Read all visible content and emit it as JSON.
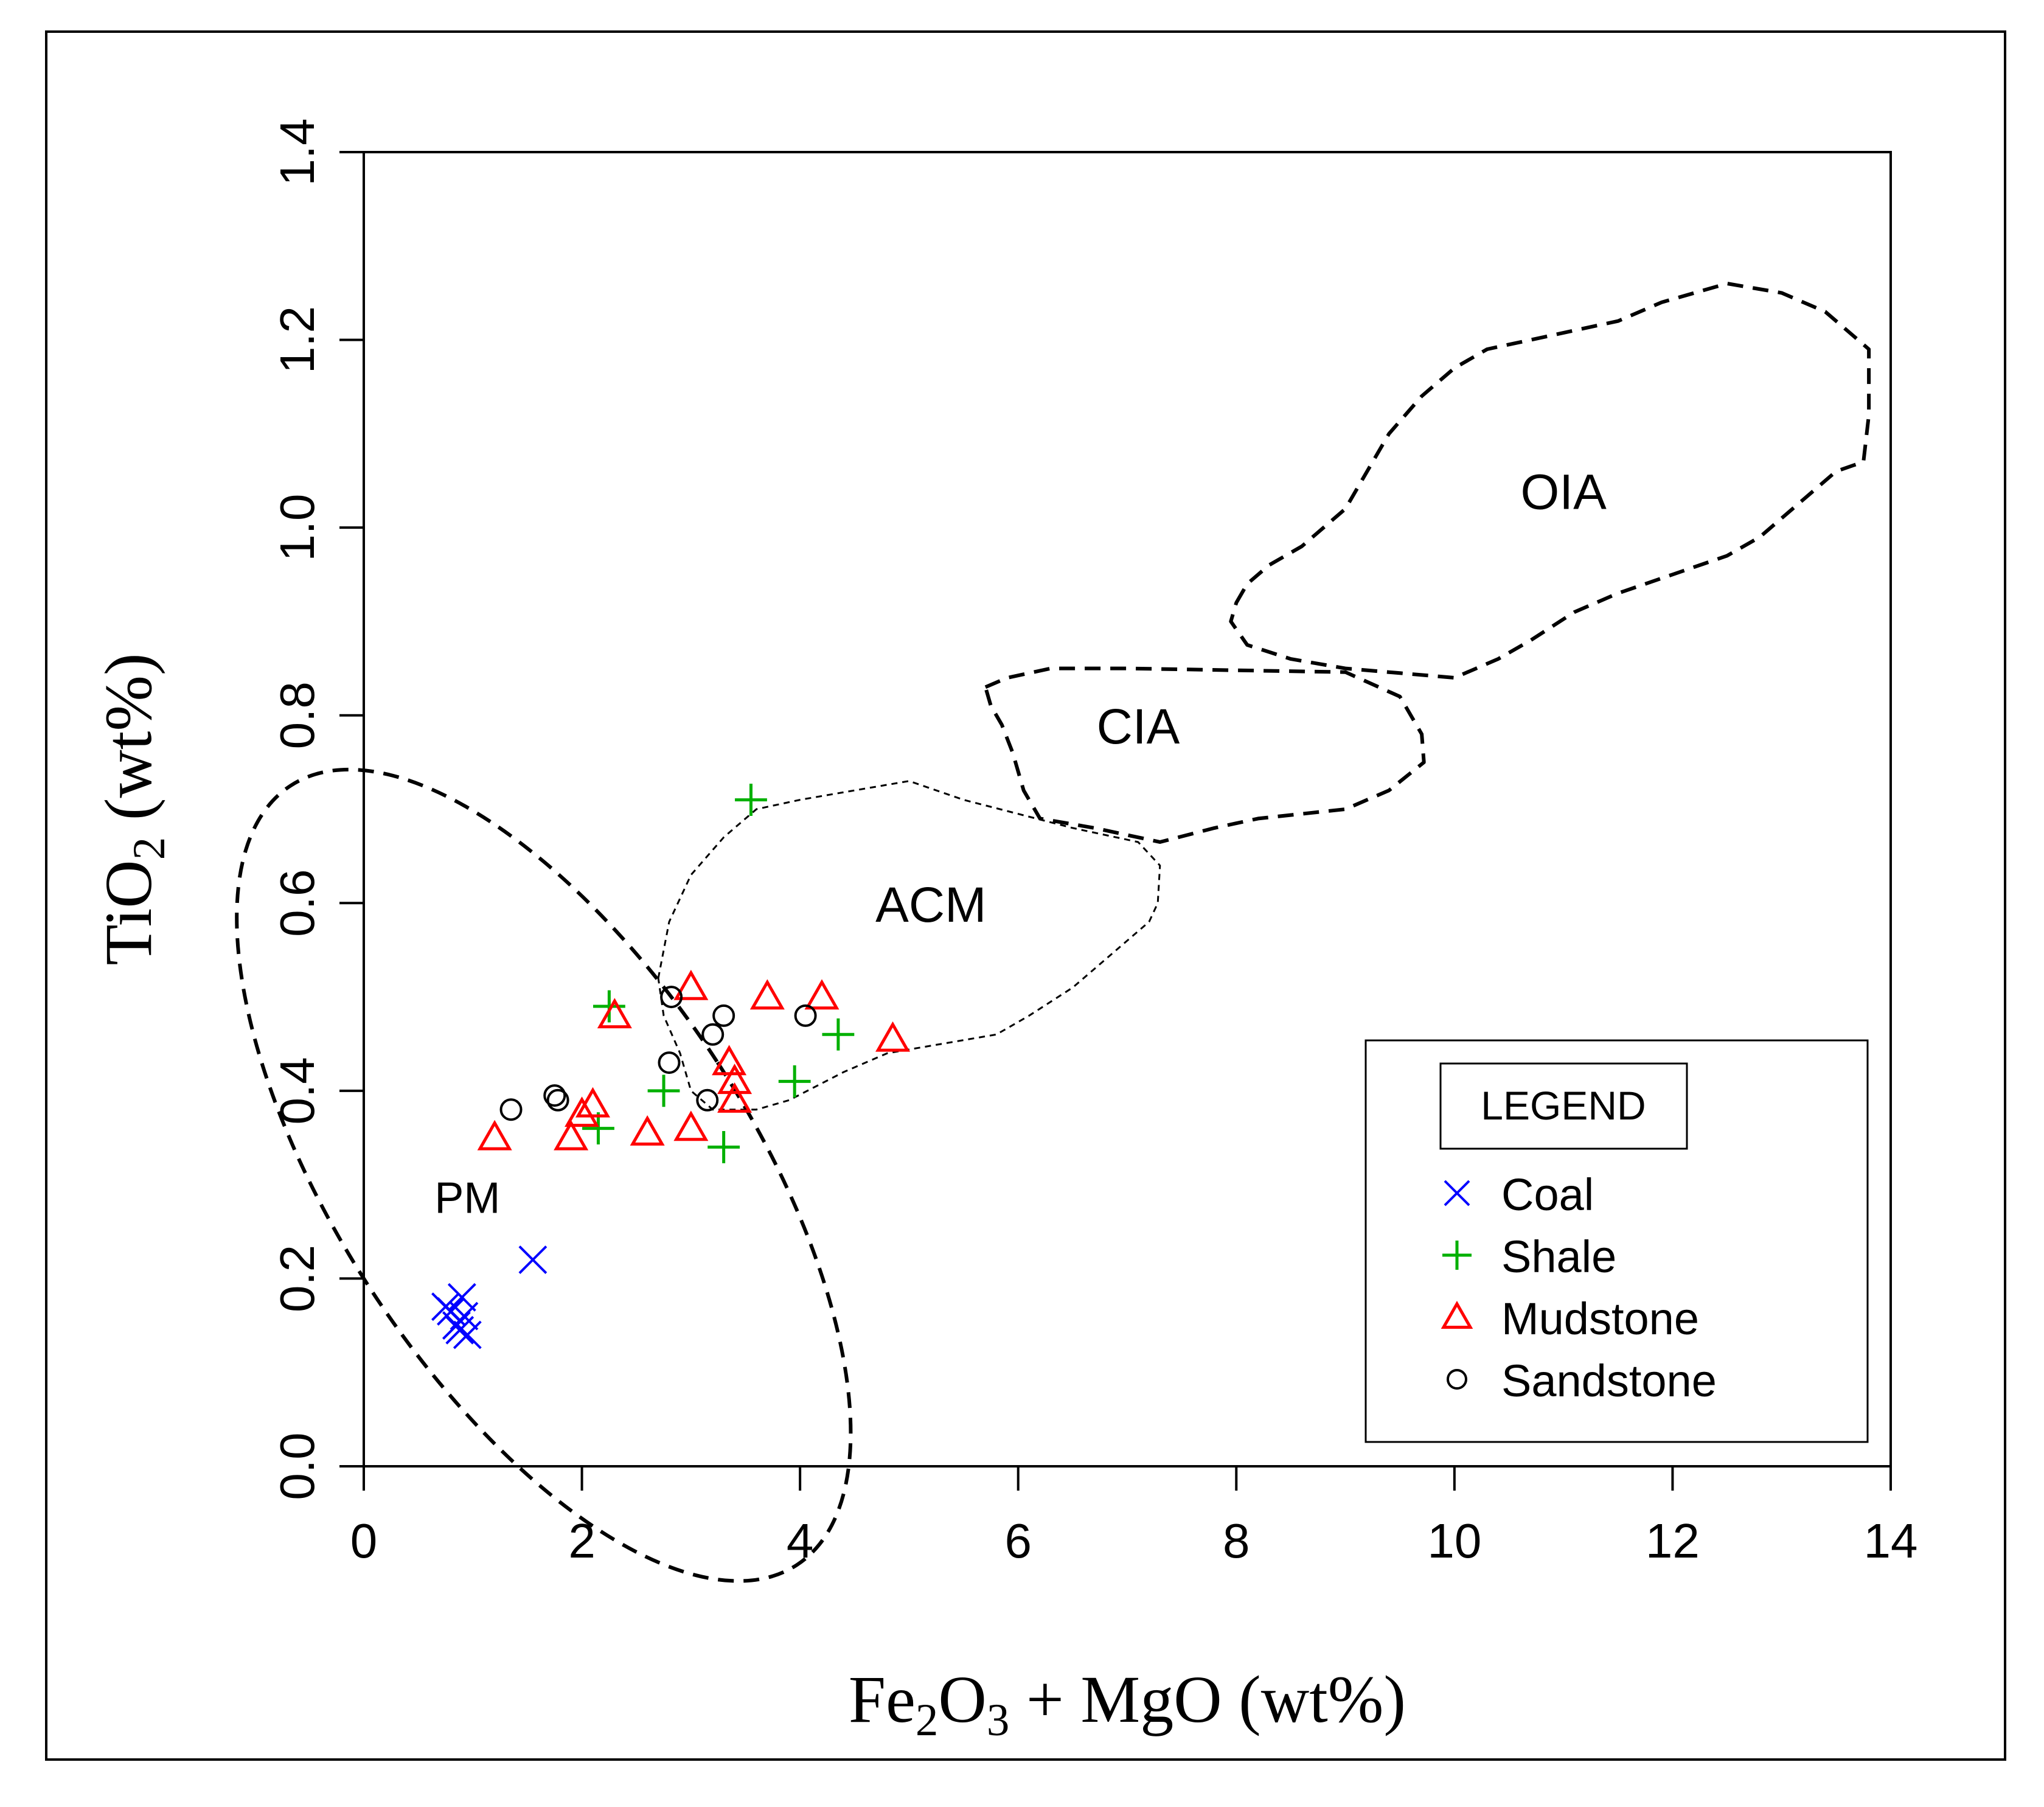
{
  "chart_data": {
    "type": "scatter",
    "title": "",
    "xlabel": {
      "pre": "Fe",
      "sub1": "2",
      "mid": "O",
      "sub2": "3",
      "post": " + MgO (wt%)"
    },
    "ylabel": {
      "pre": "TiO",
      "sub": "2",
      "post": " (wt%)"
    },
    "xlim": [
      0,
      14
    ],
    "ylim": [
      0,
      1.4
    ],
    "xticks": [
      0,
      2,
      4,
      6,
      8,
      10,
      12,
      14
    ],
    "yticks": [
      0.0,
      0.2,
      0.4,
      0.6,
      0.8,
      1.0,
      1.2,
      1.4
    ],
    "xtick_labels": [
      "0",
      "2",
      "4",
      "6",
      "8",
      "10",
      "12",
      "14"
    ],
    "ytick_labels": [
      "0.0",
      "0.2",
      "0.4",
      "0.6",
      "0.8",
      "1.0",
      "1.2",
      "1.4"
    ],
    "grid": false,
    "fields": [
      {
        "name": "OIA",
        "label_pos": [
          11.0,
          1.02
        ],
        "outline": [
          [
            8.0,
            0.92
          ],
          [
            8.1,
            0.94
          ],
          [
            8.3,
            0.96
          ],
          [
            8.6,
            0.98
          ],
          [
            9.0,
            1.02
          ],
          [
            9.2,
            1.06
          ],
          [
            9.4,
            1.1
          ],
          [
            9.7,
            1.14
          ],
          [
            10.0,
            1.17
          ],
          [
            10.3,
            1.19
          ],
          [
            10.7,
            1.2
          ],
          [
            11.1,
            1.21
          ],
          [
            11.5,
            1.22
          ],
          [
            11.9,
            1.24
          ],
          [
            12.5,
            1.26
          ],
          [
            13.0,
            1.25
          ],
          [
            13.4,
            1.23
          ],
          [
            13.6,
            1.21
          ],
          [
            13.8,
            1.19
          ],
          [
            13.8,
            1.12
          ],
          [
            13.75,
            1.07
          ],
          [
            13.5,
            1.06
          ],
          [
            13.2,
            1.03
          ],
          [
            12.8,
            0.99
          ],
          [
            12.5,
            0.97
          ],
          [
            12.0,
            0.95
          ],
          [
            11.5,
            0.93
          ],
          [
            11.1,
            0.91
          ],
          [
            10.7,
            0.88
          ],
          [
            10.4,
            0.86
          ],
          [
            10.0,
            0.84
          ],
          [
            9.5,
            0.845
          ],
          [
            9.0,
            0.85
          ],
          [
            8.5,
            0.86
          ],
          [
            8.1,
            0.875
          ],
          [
            7.95,
            0.9
          ],
          [
            8.0,
            0.92
          ]
        ]
      },
      {
        "name": "CIA",
        "label_pos": [
          7.1,
          0.77
        ],
        "outline": [
          [
            5.7,
            0.83
          ],
          [
            5.9,
            0.84
          ],
          [
            6.3,
            0.85
          ],
          [
            7.0,
            0.85
          ],
          [
            8.0,
            0.848
          ],
          [
            9.0,
            0.846
          ],
          [
            9.5,
            0.82
          ],
          [
            9.7,
            0.78
          ],
          [
            9.72,
            0.75
          ],
          [
            9.4,
            0.72
          ],
          [
            9.0,
            0.7
          ],
          [
            8.2,
            0.69
          ],
          [
            7.8,
            0.68
          ],
          [
            7.3,
            0.665
          ],
          [
            6.7,
            0.68
          ],
          [
            6.2,
            0.69
          ],
          [
            6.05,
            0.72
          ],
          [
            5.95,
            0.76
          ],
          [
            5.85,
            0.79
          ],
          [
            5.75,
            0.81
          ],
          [
            5.7,
            0.83
          ]
        ]
      },
      {
        "name": "ACM",
        "label_pos": [
          5.2,
          0.58
        ],
        "outline": [
          [
            2.7,
            0.52
          ],
          [
            2.8,
            0.58
          ],
          [
            3.0,
            0.63
          ],
          [
            3.3,
            0.67
          ],
          [
            3.6,
            0.7
          ],
          [
            4.0,
            0.71
          ],
          [
            4.5,
            0.72
          ],
          [
            5.0,
            0.73
          ],
          [
            5.5,
            0.71
          ],
          [
            6.0,
            0.695
          ],
          [
            6.5,
            0.68
          ],
          [
            7.1,
            0.665
          ],
          [
            7.3,
            0.64
          ],
          [
            7.28,
            0.6
          ],
          [
            7.2,
            0.58
          ],
          [
            7.0,
            0.56
          ],
          [
            6.8,
            0.54
          ],
          [
            6.5,
            0.51
          ],
          [
            6.1,
            0.48
          ],
          [
            5.8,
            0.46
          ],
          [
            5.3,
            0.45
          ],
          [
            4.8,
            0.44
          ],
          [
            4.4,
            0.42
          ],
          [
            3.9,
            0.39
          ],
          [
            3.6,
            0.38
          ],
          [
            3.2,
            0.38
          ],
          [
            3.0,
            0.4
          ],
          [
            2.9,
            0.44
          ],
          [
            2.75,
            0.48
          ],
          [
            2.7,
            0.52
          ]
        ]
      },
      {
        "name": "PM",
        "label_pos": [
          0.95,
          0.27
        ],
        "ellipse": {
          "cx": 1.65,
          "cy": 0.31,
          "rx": 1.9,
          "ry": 0.165,
          "angle_deg": 33
        }
      }
    ],
    "legend": {
      "title": "LEGEND",
      "placement": "bottom-right",
      "entries": [
        "Coal",
        "Shale",
        "Mudstone",
        "Sandstone"
      ]
    },
    "series": [
      {
        "name": "Coal",
        "marker": "x",
        "color": "#0000ff",
        "x": [
          0.75,
          0.85,
          0.9,
          0.95,
          0.92,
          0.8,
          0.88,
          1.55
        ],
        "y": [
          0.17,
          0.15,
          0.18,
          0.14,
          0.16,
          0.165,
          0.145,
          0.22
        ]
      },
      {
        "name": "Shale",
        "marker": "+",
        "color": "#00b000",
        "x": [
          3.55,
          2.25,
          2.15,
          2.75,
          3.3,
          3.95,
          4.35
        ],
        "y": [
          0.71,
          0.49,
          0.36,
          0.4,
          0.34,
          0.41,
          0.46
        ]
      },
      {
        "name": "Mudstone",
        "marker": "triangle",
        "color": "#ff0000",
        "x": [
          1.2,
          1.9,
          2.0,
          2.1,
          2.3,
          2.6,
          3.0,
          3.0,
          3.35,
          3.4,
          3.4,
          3.7,
          4.2,
          4.85
        ],
        "y": [
          0.35,
          0.35,
          0.375,
          0.385,
          0.48,
          0.355,
          0.36,
          0.51,
          0.43,
          0.41,
          0.39,
          0.5,
          0.5,
          0.455
        ]
      },
      {
        "name": "Sandstone",
        "marker": "o",
        "color": "#000000",
        "x": [
          1.35,
          1.75,
          1.78,
          2.8,
          2.82,
          3.15,
          3.2,
          3.3,
          4.05
        ],
        "y": [
          0.38,
          0.395,
          0.39,
          0.43,
          0.5,
          0.39,
          0.46,
          0.48,
          0.48
        ]
      }
    ]
  }
}
